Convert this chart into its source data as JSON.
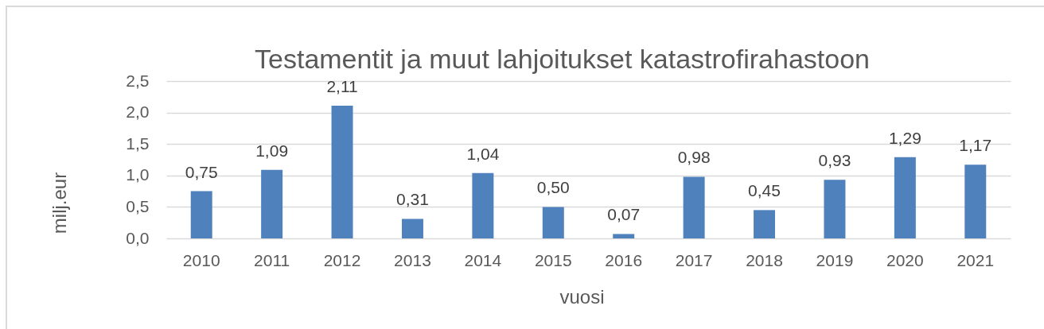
{
  "chart_data": {
    "type": "bar",
    "title": "Testamentit ja muut lahjoitukset katastrofirahastoon",
    "xlabel": "vuosi",
    "ylabel": "milj.eur",
    "categories": [
      "2010",
      "2011",
      "2012",
      "2013",
      "2014",
      "2015",
      "2016",
      "2017",
      "2018",
      "2019",
      "2020",
      "2021"
    ],
    "values": [
      0.75,
      1.09,
      2.11,
      0.31,
      1.04,
      0.5,
      0.07,
      0.98,
      0.45,
      0.93,
      1.29,
      1.17
    ],
    "value_labels": [
      "0,75",
      "1,09",
      "2,11",
      "0,31",
      "1,04",
      "0,50",
      "0,07",
      "0,98",
      "0,45",
      "0,93",
      "1,29",
      "1,17"
    ],
    "color": "#4f81bd",
    "ylim": [
      0,
      2.5
    ],
    "yticks": [
      {
        "value": 0,
        "label": "0,0"
      },
      {
        "value": 0.5,
        "label": "0,5"
      },
      {
        "value": 1,
        "label": "1,0"
      },
      {
        "value": 1.5,
        "label": "1,5"
      },
      {
        "value": 2,
        "label": "2,0"
      },
      {
        "value": 2.5,
        "label": "2,5"
      }
    ],
    "grid": "y"
  }
}
